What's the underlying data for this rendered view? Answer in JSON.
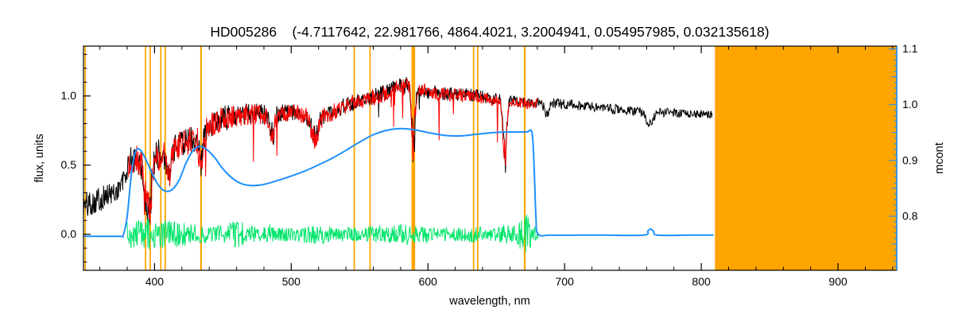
{
  "chart_data": {
    "type": "line",
    "title": "HD005286    (-4.7117642, 22.981766, 4864.4021, 3.2004941, 0.054957985, 0.032135618)",
    "star_id": "HD005286",
    "title_params": [
      -4.7117642,
      22.981766,
      4864.4021,
      3.2004941,
      0.054957985,
      0.032135618
    ],
    "grid": false,
    "legend": "none",
    "colors": {
      "frame": "#000000",
      "observed": "#000000",
      "fit": "#ff0000",
      "residual": "#00e56a",
      "continuum": "#1e90ff",
      "right_axis": "#1e90ff",
      "marker": "#ffa500",
      "background": "#ffffff"
    },
    "x_axis": {
      "label": "wavelength, nm",
      "range": [
        348,
        943
      ],
      "major_ticks": [
        400,
        500,
        600,
        700,
        800,
        900
      ],
      "tick_labels": [
        "400",
        "500",
        "600",
        "700",
        "800",
        "900"
      ],
      "minor_step": 20
    },
    "y_left": {
      "label": "flux, units",
      "range": [
        -0.26,
        1.36
      ],
      "major_ticks": [
        0.0,
        0.5,
        1.0
      ],
      "tick_labels": [
        "0.0",
        "0.5",
        "1.0"
      ],
      "minor_step": 0.1
    },
    "y_right": {
      "label": "mcont",
      "range": [
        0.703,
        1.105
      ],
      "major_ticks": [
        0.8,
        0.9,
        1.0,
        1.1
      ],
      "tick_labels": [
        "0.8",
        "0.9",
        "1.0",
        "1.1"
      ],
      "minor_step": 0.01
    },
    "masked_band": [
      810,
      943
    ],
    "marker_lines": {
      "lines": [
        [
          349.3,
          1.8
        ],
        [
          393.4,
          1.8
        ],
        [
          396.8,
          1.8
        ],
        [
          404.6,
          1.8
        ],
        [
          407.8,
          1.8
        ],
        [
          434.0,
          2.2
        ],
        [
          546.1,
          1.8
        ],
        [
          557.7,
          1.8
        ],
        [
          589.3,
          4.5
        ],
        [
          633.4,
          1.8
        ],
        [
          636.4,
          1.8
        ],
        [
          670.8,
          2.2
        ]
      ]
    },
    "series": [
      {
        "name": "observed-spectrum",
        "color": "#000000",
        "width": 1,
        "seed": 101,
        "step": 0.35,
        "anchors": [
          [
            348,
            0.2,
            0.1
          ],
          [
            355,
            0.24,
            0.1
          ],
          [
            363,
            0.27,
            0.09
          ],
          [
            371,
            0.3,
            0.085
          ],
          [
            377,
            0.38,
            0.09
          ],
          [
            383,
            0.54,
            0.1
          ],
          [
            390,
            0.52,
            0.12
          ],
          [
            395,
            0.48,
            0.12
          ],
          [
            402,
            0.58,
            0.12
          ],
          [
            408,
            0.6,
            0.11
          ],
          [
            415,
            0.63,
            0.1
          ],
          [
            422,
            0.66,
            0.1
          ],
          [
            430,
            0.7,
            0.1
          ],
          [
            438,
            0.76,
            0.09
          ],
          [
            446,
            0.83,
            0.085
          ],
          [
            455,
            0.86,
            0.08
          ],
          [
            465,
            0.87,
            0.08
          ],
          [
            475,
            0.88,
            0.075
          ],
          [
            485,
            0.86,
            0.07
          ],
          [
            495,
            0.88,
            0.065
          ],
          [
            505,
            0.88,
            0.06
          ],
          [
            515,
            0.83,
            0.07
          ],
          [
            525,
            0.86,
            0.06
          ],
          [
            535,
            0.91,
            0.06
          ],
          [
            545,
            0.95,
            0.06
          ],
          [
            555,
            0.98,
            0.06
          ],
          [
            565,
            1.01,
            0.06
          ],
          [
            575,
            1.05,
            0.065
          ],
          [
            585,
            1.08,
            0.065
          ],
          [
            592,
            1.05,
            0.06
          ],
          [
            600,
            1.03,
            0.055
          ],
          [
            610,
            1.02,
            0.05
          ],
          [
            622,
            1.01,
            0.05
          ],
          [
            635,
            1.0,
            0.05
          ],
          [
            648,
            0.98,
            0.05
          ],
          [
            660,
            0.96,
            0.045
          ],
          [
            672,
            0.95,
            0.04
          ],
          [
            685,
            0.95,
            0.04
          ],
          [
            700,
            0.94,
            0.038
          ],
          [
            715,
            0.93,
            0.036
          ],
          [
            730,
            0.91,
            0.035
          ],
          [
            745,
            0.9,
            0.034
          ],
          [
            760,
            0.88,
            0.034
          ],
          [
            775,
            0.88,
            0.032
          ],
          [
            790,
            0.87,
            0.03
          ],
          [
            808,
            0.86,
            0.03
          ]
        ],
        "absorption": [
          [
            393.4,
            0.28,
            1.3
          ],
          [
            396.8,
            0.28,
            1.3
          ],
          [
            410.2,
            0.16,
            1.5
          ],
          [
            434.0,
            0.2,
            1.5
          ],
          [
            486.1,
            0.16,
            1.4
          ],
          [
            517.2,
            0.12,
            2.2
          ],
          [
            589.3,
            0.42,
            1.1
          ],
          [
            656.3,
            0.4,
            1.2
          ],
          [
            687.0,
            0.1,
            1.6
          ],
          [
            762.0,
            0.1,
            2.2
          ]
        ],
        "spikes": [
          {
            "range": [
              425,
              535
            ],
            "prob": 0.012,
            "max": 0.25
          },
          {
            "range": [
              560,
              680
            ],
            "prob": 0.008,
            "max": 0.2
          }
        ]
      },
      {
        "name": "fitted-spectrum",
        "color": "#ff0000",
        "width": 1,
        "seed": 202,
        "step": 0.35,
        "anchors": [
          [
            381,
            0.48,
            0.09
          ],
          [
            386,
            0.55,
            0.11
          ],
          [
            392,
            0.5,
            0.12
          ],
          [
            398,
            0.5,
            0.12
          ],
          [
            404,
            0.58,
            0.12
          ],
          [
            412,
            0.62,
            0.11
          ],
          [
            420,
            0.65,
            0.1
          ],
          [
            430,
            0.7,
            0.1
          ],
          [
            440,
            0.78,
            0.09
          ],
          [
            450,
            0.84,
            0.085
          ],
          [
            462,
            0.86,
            0.08
          ],
          [
            474,
            0.87,
            0.075
          ],
          [
            486,
            0.85,
            0.07
          ],
          [
            498,
            0.88,
            0.065
          ],
          [
            510,
            0.86,
            0.065
          ],
          [
            518,
            0.82,
            0.07
          ],
          [
            528,
            0.87,
            0.06
          ],
          [
            540,
            0.93,
            0.06
          ],
          [
            552,
            0.97,
            0.06
          ],
          [
            564,
            1.0,
            0.06
          ],
          [
            576,
            1.05,
            0.06
          ],
          [
            586,
            1.07,
            0.06
          ],
          [
            594,
            1.04,
            0.055
          ],
          [
            605,
            1.02,
            0.05
          ],
          [
            618,
            1.01,
            0.05
          ],
          [
            632,
            1.0,
            0.05
          ],
          [
            645,
            0.98,
            0.05
          ],
          [
            658,
            0.96,
            0.045
          ],
          [
            670,
            0.95,
            0.04
          ],
          [
            680,
            0.94,
            0.04
          ]
        ],
        "absorption": [
          [
            393.4,
            0.28,
            1.3
          ],
          [
            396.8,
            0.28,
            1.3
          ],
          [
            410.2,
            0.17,
            1.5
          ],
          [
            434.0,
            0.22,
            1.5
          ],
          [
            486.1,
            0.17,
            1.4
          ],
          [
            517.2,
            0.14,
            2.2
          ],
          [
            589.3,
            0.45,
            1.1
          ],
          [
            656.3,
            0.42,
            1.2
          ]
        ],
        "spikes": [
          {
            "range": [
              420,
              540
            ],
            "prob": 0.035,
            "max": 0.4
          },
          {
            "range": [
              560,
              680
            ],
            "prob": 0.02,
            "max": 0.32
          }
        ]
      },
      {
        "name": "residual",
        "color": "#00e56a",
        "width": 1,
        "seed": 303,
        "step": 0.35,
        "anchors": [
          [
            380,
            0,
            0.1
          ],
          [
            395,
            0,
            0.11
          ],
          [
            410,
            0,
            0.1
          ],
          [
            425,
            0,
            0.08
          ],
          [
            440,
            0,
            0.06
          ],
          [
            452,
            0,
            0.07
          ],
          [
            460,
            0,
            0.11
          ],
          [
            468,
            0,
            0.07
          ],
          [
            480,
            0,
            0.055
          ],
          [
            495,
            0,
            0.05
          ],
          [
            510,
            0,
            0.06
          ],
          [
            520,
            0,
            0.075
          ],
          [
            532,
            0,
            0.05
          ],
          [
            545,
            0,
            0.055
          ],
          [
            558,
            0,
            0.06
          ],
          [
            572,
            0,
            0.07
          ],
          [
            585,
            0,
            0.08
          ],
          [
            592,
            0,
            0.06
          ],
          [
            605,
            0,
            0.05
          ],
          [
            620,
            0,
            0.05
          ],
          [
            635,
            0,
            0.06
          ],
          [
            648,
            0,
            0.05
          ],
          [
            656,
            0,
            0.07
          ],
          [
            664,
            0,
            0.06
          ],
          [
            670,
            0,
            0.14
          ],
          [
            673,
            0,
            0.16
          ],
          [
            677,
            0,
            0.07
          ],
          [
            681,
            0,
            0.05
          ]
        ],
        "absorption": [],
        "spikes": [
          {
            "range": [
              380,
              681
            ],
            "prob": 0.01,
            "max": 0.08,
            "bipolar": true
          }
        ]
      }
    ],
    "continuum": {
      "name": "mcont-curve",
      "color": "#1e90ff",
      "axis": "right",
      "points": [
        [
          348,
          0.764
        ],
        [
          374,
          0.764
        ],
        [
          377,
          0.766
        ],
        [
          380,
          0.8
        ],
        [
          383,
          0.875
        ],
        [
          386,
          0.915
        ],
        [
          389,
          0.92
        ],
        [
          393,
          0.905
        ],
        [
          398,
          0.878
        ],
        [
          403,
          0.855
        ],
        [
          408,
          0.845
        ],
        [
          413,
          0.848
        ],
        [
          418,
          0.865
        ],
        [
          423,
          0.895
        ],
        [
          428,
          0.917
        ],
        [
          433,
          0.925
        ],
        [
          438,
          0.92
        ],
        [
          444,
          0.905
        ],
        [
          450,
          0.885
        ],
        [
          457,
          0.868
        ],
        [
          464,
          0.858
        ],
        [
          472,
          0.855
        ],
        [
          480,
          0.857
        ],
        [
          490,
          0.864
        ],
        [
          500,
          0.872
        ],
        [
          510,
          0.881
        ],
        [
          520,
          0.892
        ],
        [
          530,
          0.904
        ],
        [
          540,
          0.918
        ],
        [
          550,
          0.933
        ],
        [
          560,
          0.946
        ],
        [
          570,
          0.954
        ],
        [
          580,
          0.957
        ],
        [
          590,
          0.955
        ],
        [
          600,
          0.95
        ],
        [
          612,
          0.945
        ],
        [
          624,
          0.944
        ],
        [
          636,
          0.947
        ],
        [
          648,
          0.95
        ],
        [
          660,
          0.951
        ],
        [
          672,
          0.951
        ],
        [
          676,
          0.951
        ],
        [
          677.5,
          0.9
        ],
        [
          679,
          0.8
        ],
        [
          680.5,
          0.768
        ],
        [
          690,
          0.766
        ],
        [
          710,
          0.766
        ],
        [
          730,
          0.766
        ],
        [
          758,
          0.766
        ],
        [
          761,
          0.774
        ],
        [
          763,
          0.777
        ],
        [
          765,
          0.773
        ],
        [
          768,
          0.766
        ],
        [
          790,
          0.766
        ],
        [
          809,
          0.766
        ]
      ]
    }
  }
}
